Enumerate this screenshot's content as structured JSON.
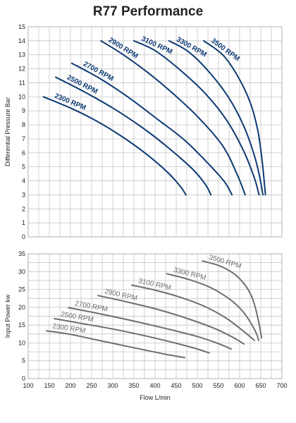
{
  "title": "R77 Performance",
  "colors": {
    "pressure_series": "#0d3a73",
    "power_series": "#6e6e6e",
    "grid": "#bdbdbd"
  },
  "chart_data": [
    {
      "type": "line",
      "title": "",
      "xlabel": "",
      "ylabel": "Differential Pressure Bar",
      "xlim": [
        100,
        700
      ],
      "ylim": [
        0,
        15
      ],
      "yticks": [
        0,
        1,
        2,
        3,
        4,
        5,
        6,
        7,
        8,
        9,
        10,
        11,
        12,
        13,
        14,
        15
      ],
      "grid": true,
      "series": [
        {
          "name": "2300 RPM",
          "x": [
            136,
            200,
            260,
            320,
            380,
            430,
            460,
            473
          ],
          "y": [
            10,
            9.2,
            8.3,
            7.2,
            5.9,
            4.6,
            3.6,
            3
          ]
        },
        {
          "name": "2500 RPM",
          "x": [
            165,
            230,
            300,
            370,
            430,
            490,
            520,
            532
          ],
          "y": [
            11.4,
            10.4,
            9.2,
            7.8,
            6.4,
            4.8,
            3.7,
            3
          ]
        },
        {
          "name": "2700 RPM",
          "x": [
            203,
            270,
            340,
            410,
            470,
            530,
            565,
            582
          ],
          "y": [
            12.4,
            11.3,
            9.9,
            8.3,
            6.9,
            5.1,
            3.9,
            3
          ]
        },
        {
          "name": "2900 RPM",
          "x": [
            272,
            320,
            380,
            440,
            500,
            560,
            595,
            613
          ],
          "y": [
            14,
            13.1,
            11.8,
            10.3,
            8.6,
            6.5,
            4.4,
            3
          ]
        },
        {
          "name": "3100 RPM",
          "x": [
            350,
            400,
            460,
            520,
            570,
            610,
            635,
            646
          ],
          "y": [
            14,
            13.3,
            11.9,
            10.2,
            8.3,
            6.1,
            4.2,
            3
          ]
        },
        {
          "name": "3300 RPM",
          "x": [
            433,
            480,
            530,
            575,
            610,
            635,
            648,
            655
          ],
          "y": [
            14,
            13.2,
            11.7,
            9.9,
            7.9,
            5.8,
            4.2,
            3
          ]
        },
        {
          "name": "3500 RPM",
          "x": [
            515,
            560,
            595,
            625,
            643,
            653,
            658,
            661
          ],
          "y": [
            14,
            13,
            11.5,
            9.6,
            7.6,
            5.5,
            4,
            3
          ]
        }
      ]
    },
    {
      "type": "line",
      "title": "",
      "xlabel": "Flow L/min",
      "ylabel": "Input Power kw",
      "xlim": [
        100,
        700
      ],
      "ylim": [
        0,
        35
      ],
      "xticks": [
        100,
        150,
        200,
        250,
        300,
        350,
        400,
        450,
        500,
        550,
        600,
        650,
        700
      ],
      "yticks": [
        0,
        5,
        10,
        15,
        20,
        25,
        30,
        35
      ],
      "grid": true,
      "series": [
        {
          "name": "2300 RPM",
          "x": [
            143,
            200,
            260,
            320,
            380,
            430,
            470
          ],
          "y": [
            13.4,
            12.4,
            10.9,
            9.4,
            7.9,
            6.7,
            5.9
          ]
        },
        {
          "name": "2500 RPM",
          "x": [
            162,
            220,
            300,
            380,
            450,
            500,
            528
          ],
          "y": [
            16.8,
            15.6,
            13.9,
            11.9,
            9.9,
            8.3,
            7.2
          ]
        },
        {
          "name": "2700 RPM",
          "x": [
            195,
            260,
            340,
            420,
            500,
            550,
            580
          ],
          "y": [
            19.9,
            18.4,
            16.4,
            14.2,
            11.8,
            9.8,
            8.3
          ]
        },
        {
          "name": "2900 RPM",
          "x": [
            265,
            330,
            400,
            470,
            540,
            590,
            610
          ],
          "y": [
            23.3,
            21.6,
            19.6,
            17.1,
            14.1,
            11.2,
            9.7
          ]
        },
        {
          "name": "3100 RPM",
          "x": [
            345,
            400,
            460,
            520,
            570,
            610,
            635
          ],
          "y": [
            26.2,
            24.8,
            22.8,
            20.1,
            16.8,
            13.2,
            10.7
          ]
        },
        {
          "name": "3300 RPM",
          "x": [
            428,
            480,
            530,
            575,
            605,
            625,
            640,
            645
          ],
          "y": [
            29.4,
            27.8,
            25.6,
            22.4,
            19.2,
            15.9,
            12.6,
            10.7
          ]
        },
        {
          "name": "3500 RPM",
          "x": [
            512,
            555,
            590,
            615,
            630,
            640,
            648,
            652
          ],
          "y": [
            33,
            31.5,
            29.1,
            25.9,
            22.6,
            18.6,
            14.1,
            11.4
          ]
        }
      ]
    }
  ]
}
